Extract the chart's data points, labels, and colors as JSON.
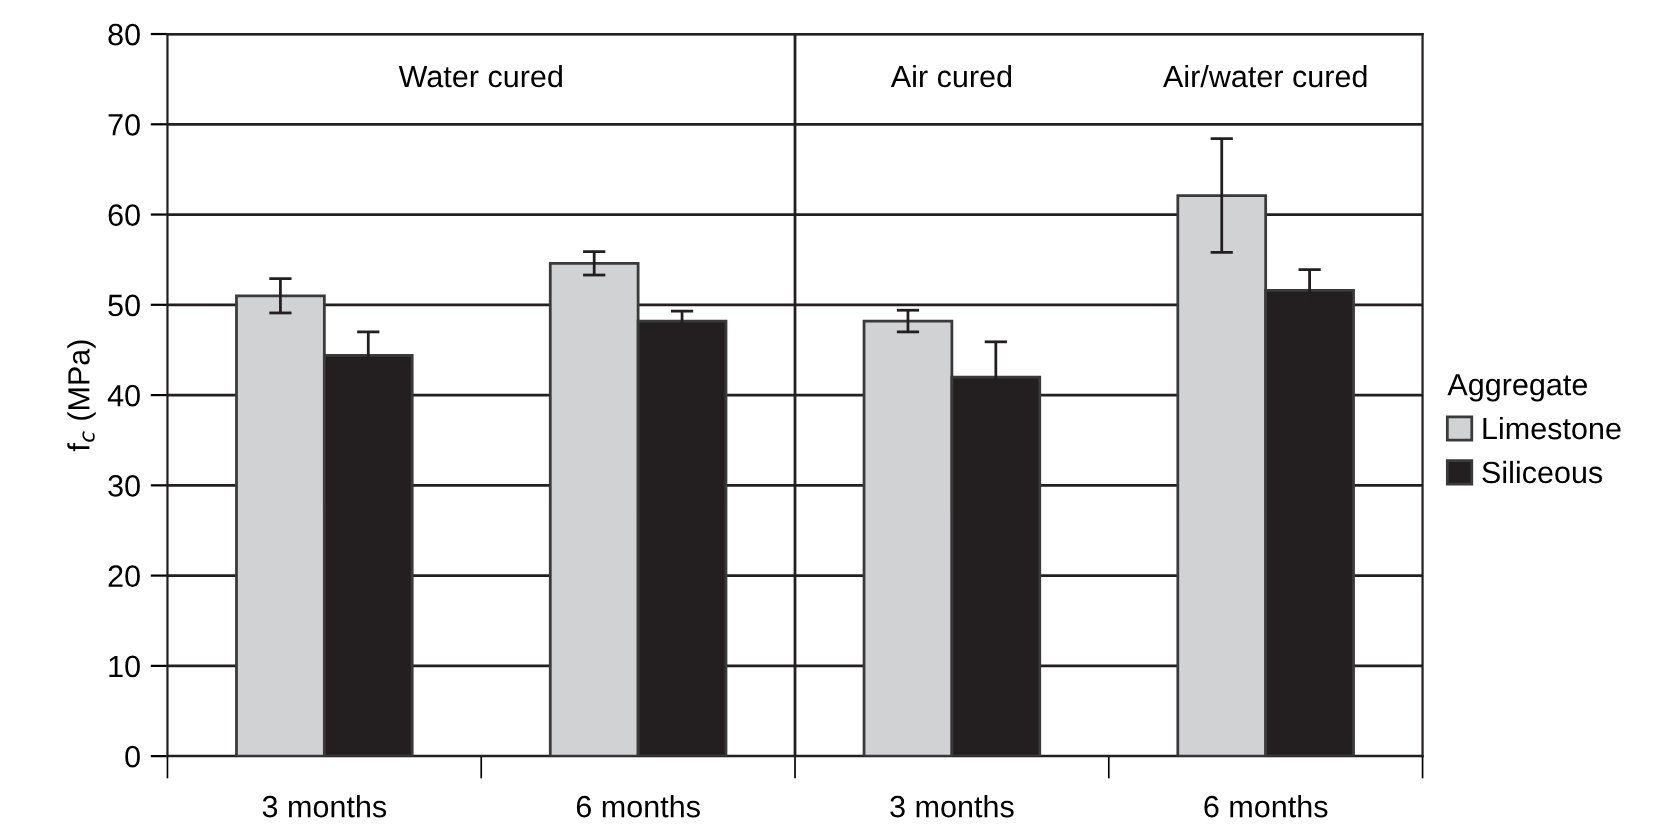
{
  "chart_data": {
    "type": "bar",
    "ylabel": "f$_{c}$ (MPa)",
    "categories": [
      "3 months",
      "6 months",
      "3 months",
      "6 months"
    ],
    "series": [
      {
        "name": "Limestone",
        "color": "#d0d2d4",
        "values": [
          51.0,
          54.6,
          48.2,
          62.1
        ],
        "errors": [
          1.9,
          1.3,
          1.2,
          6.3
        ]
      },
      {
        "name": "Siliceous",
        "color": "#231f20",
        "values": [
          44.4,
          48.2,
          42.0,
          51.6
        ],
        "errors": [
          2.6,
          1.1,
          3.9,
          2.3
        ]
      }
    ],
    "ylim": [
      0,
      80
    ],
    "yticks": [
      0,
      10,
      20,
      30,
      40,
      50,
      60,
      70,
      80
    ],
    "grid": "y",
    "legend": "right",
    "legend_title": "Aggregate",
    "annotations": [
      "Water cured",
      "Air cured",
      "Air/water cured"
    ]
  }
}
